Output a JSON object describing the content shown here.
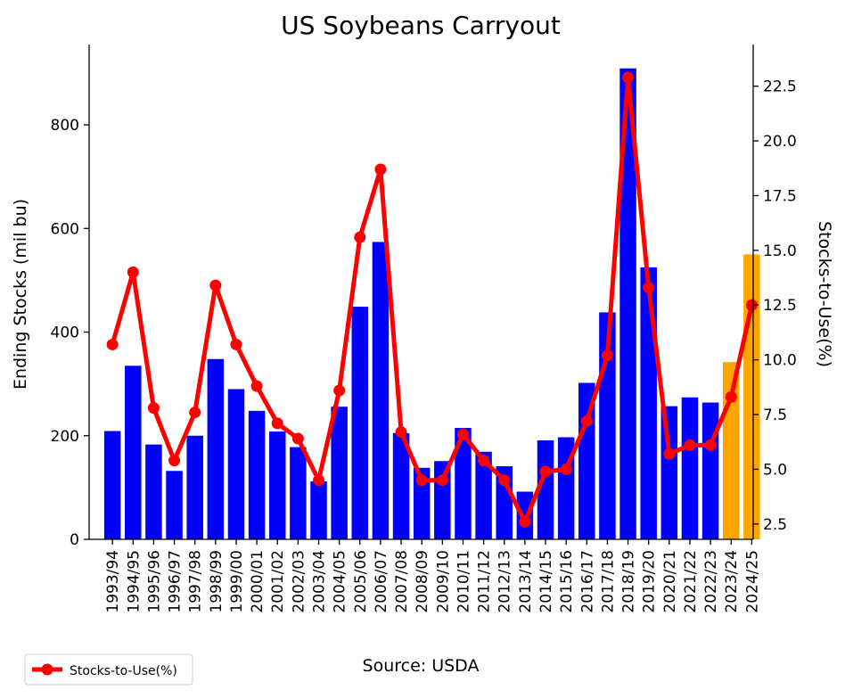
{
  "chart_data": {
    "type": "bar",
    "title": "US Soybeans Carryout",
    "ylabel": "Ending Stocks (mil bu)",
    "y2label": "Stocks-to-Use(%)",
    "source": "Source: USDA",
    "categories": [
      "1993/94",
      "1994/95",
      "1995/96",
      "1996/97",
      "1997/98",
      "1998/99",
      "1999/00",
      "2000/01",
      "2001/02",
      "2002/03",
      "2003/04",
      "2004/05",
      "2005/06",
      "2006/07",
      "2007/08",
      "2008/09",
      "2009/10",
      "2010/11",
      "2011/12",
      "2012/13",
      "2013/14",
      "2014/15",
      "2015/16",
      "2016/17",
      "2017/18",
      "2018/19",
      "2019/20",
      "2020/21",
      "2021/22",
      "2022/23",
      "2023/24",
      "2024/25"
    ],
    "series": [
      {
        "type": "bar",
        "axis": "left",
        "values": [
          209,
          335,
          183,
          132,
          200,
          348,
          290,
          248,
          208,
          178,
          112,
          256,
          449,
          574,
          205,
          138,
          151,
          215,
          169,
          141,
          92,
          191,
          197,
          302,
          438,
          909,
          525,
          257,
          274,
          264,
          342,
          550
        ],
        "colors": [
          "#0000ff",
          "#0000ff",
          "#0000ff",
          "#0000ff",
          "#0000ff",
          "#0000ff",
          "#0000ff",
          "#0000ff",
          "#0000ff",
          "#0000ff",
          "#0000ff",
          "#0000ff",
          "#0000ff",
          "#0000ff",
          "#0000ff",
          "#0000ff",
          "#0000ff",
          "#0000ff",
          "#0000ff",
          "#0000ff",
          "#0000ff",
          "#0000ff",
          "#0000ff",
          "#0000ff",
          "#0000ff",
          "#0000ff",
          "#0000ff",
          "#0000ff",
          "#0000ff",
          "#0000ff",
          "#ffa500",
          "#ffa500"
        ]
      },
      {
        "type": "line",
        "axis": "right",
        "name": "Stocks-to-Use(%)",
        "color": "#ff0000",
        "values": [
          10.7,
          14.0,
          7.8,
          5.4,
          7.6,
          13.4,
          10.7,
          8.8,
          7.1,
          6.4,
          4.5,
          8.6,
          15.6,
          18.7,
          6.7,
          4.5,
          4.5,
          6.6,
          5.4,
          4.5,
          2.6,
          4.9,
          5.0,
          7.2,
          10.2,
          22.9,
          13.3,
          5.7,
          6.1,
          6.1,
          8.3,
          12.5
        ]
      }
    ],
    "ylim": [
      0,
      955
    ],
    "y2lim": [
      1.8,
      24.4
    ],
    "yticks": [
      0,
      200,
      400,
      600,
      800
    ],
    "y2ticks": [
      "2.5",
      "5.0",
      "7.5",
      "10.0",
      "12.5",
      "15.0",
      "17.5",
      "20.0",
      "22.5"
    ],
    "grid": false,
    "legend": {
      "position": "bottom-left",
      "entries": [
        "Stocks-to-Use(%)"
      ]
    }
  }
}
